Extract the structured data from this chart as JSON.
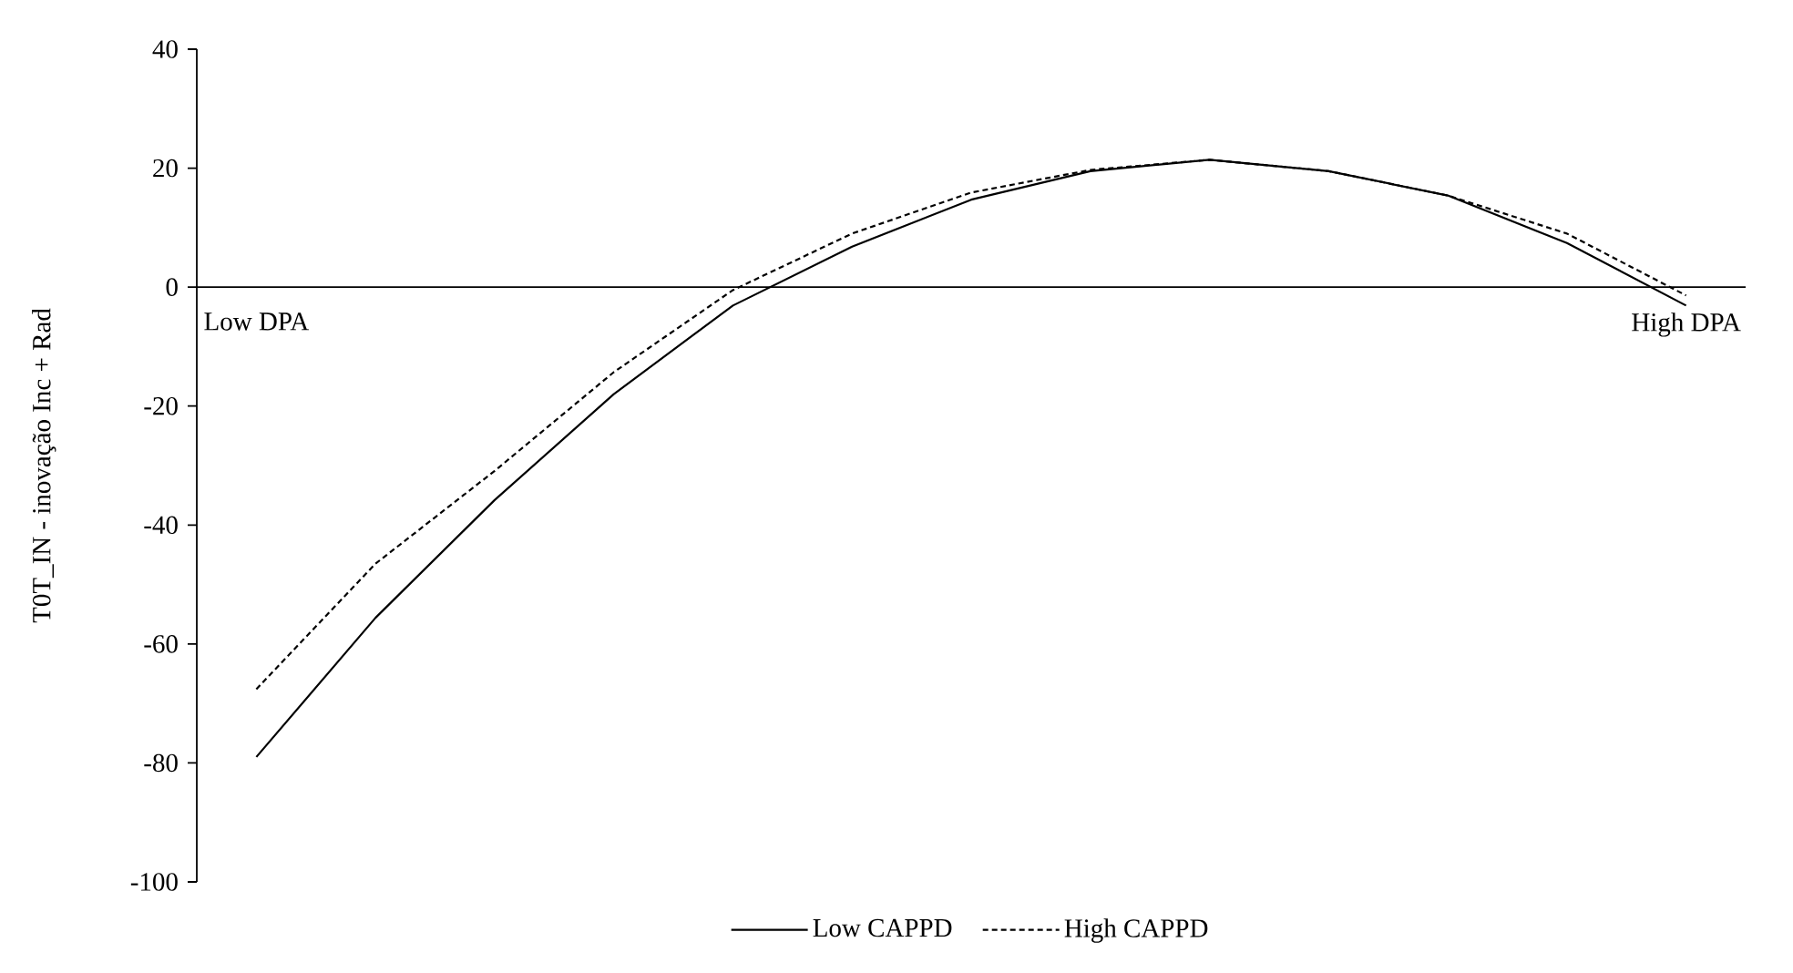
{
  "chart_data": {
    "type": "line",
    "ylabel": "T0T_IN - inovação Inc + Rad",
    "categories": [
      "Low DPA",
      null,
      null,
      null,
      null,
      null,
      null,
      null,
      null,
      null,
      null,
      null,
      "High DPA"
    ],
    "series": [
      {
        "name": "Low CAPPD",
        "color": "#000000",
        "line_style": "solid",
        "values": [
          -79,
          -55.6,
          -35.8,
          -18,
          -3.1,
          6.8,
          14.7,
          19.5,
          21.4,
          19.5,
          15.4,
          7.4,
          -3.1
        ]
      },
      {
        "name": "High CAPPD",
        "color": "#000000",
        "line_style": "dashed",
        "values": [
          -67.6,
          -46.5,
          -30.9,
          -14.3,
          -0.5,
          9.0,
          15.9,
          19.7,
          21.4,
          19.5,
          15.4,
          9.0,
          -1.4
        ]
      }
    ],
    "ylim": [
      -100,
      40
    ],
    "yticks": [
      -100,
      -80,
      -60,
      -40,
      -20,
      0,
      20,
      40
    ],
    "legend": "bottom",
    "marker": "none",
    "grid": false
  }
}
